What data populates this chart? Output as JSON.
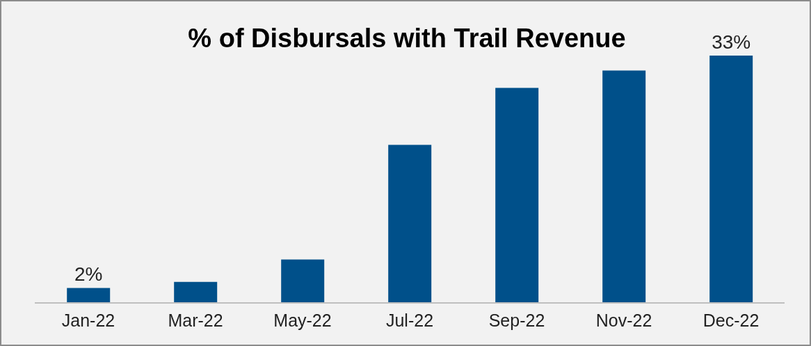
{
  "chart_data": {
    "type": "bar",
    "title": "% of Disbursals with Trail Revenue",
    "categories": [
      "Jan-22",
      "Mar-22",
      "May-22",
      "Jul-22",
      "Sep-22",
      "Nov-22",
      "Dec-22"
    ],
    "values": [
      2,
      2.8,
      5.8,
      21.1,
      28.7,
      31,
      33
    ],
    "value_labels": [
      "2%",
      null,
      null,
      null,
      null,
      null,
      "33%"
    ],
    "color": "#00508a"
  }
}
